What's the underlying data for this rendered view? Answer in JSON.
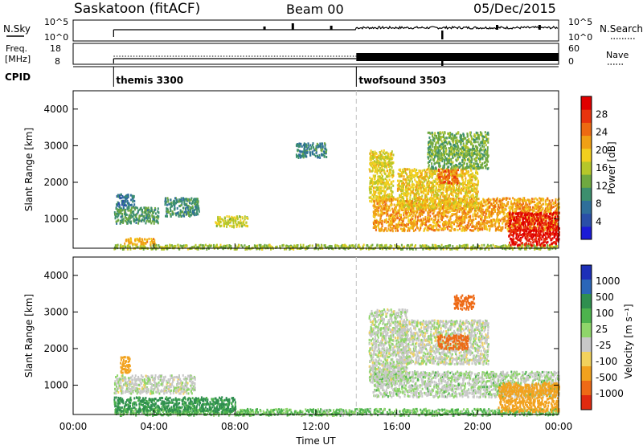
{
  "header": {
    "station": "Saskatoon (fitACF)",
    "beam": "Beam 00",
    "date": "05/Dec/2015"
  },
  "colors": {
    "axes": "#000000",
    "divider": "#cccccc"
  },
  "chart_data": [
    {
      "id": "nsky",
      "type": "line",
      "left_label": "N.Sky",
      "right_label": "N.Search",
      "left_ticks": [
        "10^5",
        "10^0"
      ],
      "right_ticks": [
        "10^5",
        "10^0"
      ],
      "series": [
        {
          "style": "solid",
          "x_start": 2.0,
          "level": "low-noise"
        }
      ]
    },
    {
      "id": "freq",
      "type": "line",
      "left_label_top": "Freq.",
      "left_label_bottom": "[MHz]",
      "right_label": "Nave",
      "left_ticks": [
        "18",
        "8"
      ],
      "right_ticks": [
        "60",
        "0"
      ],
      "series": [
        {
          "style": "solid",
          "x_start": 2.0,
          "x_end": 14.0
        },
        {
          "style": "dotted",
          "x_start": 2.0,
          "x_end": 14.0
        },
        {
          "style": "dense-band",
          "x_start": 14.0,
          "x_end": 24.0
        }
      ]
    },
    {
      "id": "cpid",
      "type": "annotation",
      "label": "CPID",
      "segments": [
        {
          "x": 2.0,
          "name": "themis 3300"
        },
        {
          "x": 14.0,
          "name": "twofsound 3503"
        }
      ]
    },
    {
      "id": "power",
      "type": "heatmap",
      "ylabel": "Slant Range [km]",
      "xlim": [
        0,
        24
      ],
      "ylim": [
        200,
        4500
      ],
      "yticks": [
        "1000",
        "2000",
        "3000",
        "4000"
      ],
      "colorbar": {
        "label": "Power [dB]",
        "ticks": [
          "4",
          "8",
          "12",
          "16",
          "20",
          "24",
          "28"
        ],
        "colors": [
          "#1b1bd6",
          "#2a4fa8",
          "#2f6f9a",
          "#3c8f6e",
          "#6fa940",
          "#b6c72a",
          "#f2cf1f",
          "#f0a015",
          "#ed6a12",
          "#e8340e",
          "#e00000"
        ]
      },
      "regions": [
        {
          "t": [
            2.0,
            24.0
          ],
          "r": [
            200,
            320
          ],
          "v": 14
        },
        {
          "t": [
            2.1,
            3.0
          ],
          "r": [
            1350,
            1700
          ],
          "v": 6
        },
        {
          "t": [
            2.0,
            4.2
          ],
          "r": [
            900,
            1350
          ],
          "v": 10
        },
        {
          "t": [
            4.5,
            6.2
          ],
          "r": [
            1100,
            1600
          ],
          "v": 9
        },
        {
          "t": [
            7.0,
            8.6
          ],
          "r": [
            800,
            1100
          ],
          "v": 16
        },
        {
          "t": [
            2.5,
            4.0
          ],
          "r": [
            320,
            500
          ],
          "v": 20
        },
        {
          "t": [
            11.0,
            12.5
          ],
          "r": [
            2700,
            3100
          ],
          "v": 8
        },
        {
          "t": [
            14.6,
            15.8
          ],
          "r": [
            1500,
            2900
          ],
          "v": 17
        },
        {
          "t": [
            14.8,
            24.0
          ],
          "r": [
            700,
            1600
          ],
          "v": 21
        },
        {
          "t": [
            16.0,
            20.0
          ],
          "r": [
            1300,
            2400
          ],
          "v": 18
        },
        {
          "t": [
            18.0,
            19.0
          ],
          "r": [
            2000,
            2400
          ],
          "v": 24
        },
        {
          "t": [
            17.5,
            20.5
          ],
          "r": [
            2400,
            3400
          ],
          "v": 12
        },
        {
          "t": [
            21.5,
            24.0
          ],
          "r": [
            300,
            1200
          ],
          "v": 29
        }
      ]
    },
    {
      "id": "velocity",
      "type": "heatmap",
      "ylabel": "Slant Range [km]",
      "xlim": [
        0,
        24
      ],
      "ylim": [
        200,
        4500
      ],
      "yticks": [
        "1000",
        "2000",
        "3000",
        "4000"
      ],
      "xticks": [
        "00:00",
        "04:00",
        "08:00",
        "12:00",
        "16:00",
        "20:00",
        "00:00"
      ],
      "xlabel": "Time UT",
      "colorbar": {
        "label": "Velocity [m s⁻¹]",
        "ticks": [
          "1000",
          "500",
          "100",
          "25",
          "-25",
          "-100",
          "-500",
          "-1000"
        ],
        "colors": [
          "#1d2fb8",
          "#2b66b8",
          "#2f8f4f",
          "#4db34d",
          "#8fd66a",
          "#c8c8c8",
          "#f2d25c",
          "#f2a21e",
          "#ee6a16",
          "#e02a10"
        ]
      },
      "regions": [
        {
          "t": [
            2.0,
            24.0
          ],
          "r": [
            200,
            380
          ],
          "v": 60
        },
        {
          "t": [
            2.0,
            8.0
          ],
          "r": [
            300,
            700
          ],
          "v": 120
        },
        {
          "t": [
            2.0,
            6.0
          ],
          "r": [
            800,
            1300
          ],
          "v": 10
        },
        {
          "t": [
            2.3,
            2.8
          ],
          "r": [
            1350,
            1800
          ],
          "v": -250
        },
        {
          "t": [
            14.6,
            16.5
          ],
          "r": [
            1100,
            3100
          ],
          "v": 10
        },
        {
          "t": [
            16.0,
            20.5
          ],
          "r": [
            1600,
            2800
          ],
          "v": 5
        },
        {
          "t": [
            14.8,
            24.0
          ],
          "r": [
            700,
            1400
          ],
          "v": 15
        },
        {
          "t": [
            18.0,
            19.5
          ],
          "r": [
            2000,
            2400
          ],
          "v": -350
        },
        {
          "t": [
            18.8,
            19.8
          ],
          "r": [
            3100,
            3500
          ],
          "v": -500
        },
        {
          "t": [
            21.0,
            24.0
          ],
          "r": [
            300,
            1100
          ],
          "v": -150
        }
      ]
    }
  ]
}
